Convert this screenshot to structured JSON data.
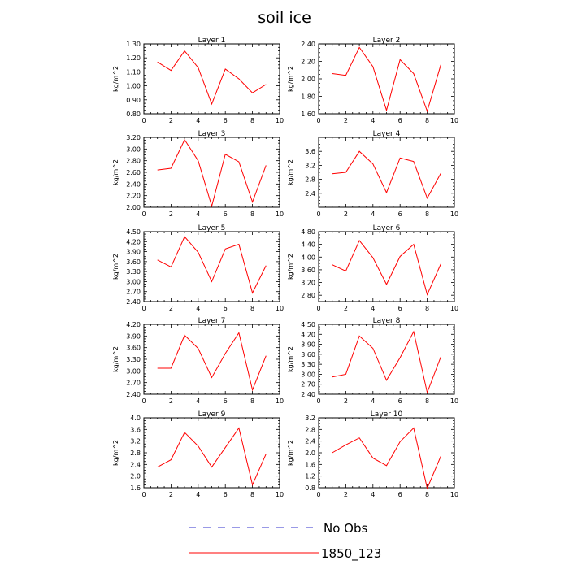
{
  "title": "soil ice",
  "colors": {
    "series": "#ff0000",
    "no_obs": "#3333cc",
    "axis": "#000000"
  },
  "legend": [
    {
      "label": "No Obs",
      "style": "dashed",
      "color": "#3333cc"
    },
    {
      "label": "1850_123",
      "style": "solid",
      "color": "#ff0000"
    }
  ],
  "chart_data": [
    {
      "type": "line",
      "title": "Layer 1",
      "ylabel": "kg/m^2",
      "xlim": [
        0,
        10
      ],
      "xticks": [
        0,
        2,
        4,
        6,
        8,
        10
      ],
      "ylim": [
        0.8,
        1.3
      ],
      "yticks": [
        "0.80",
        "0.90",
        "1.00",
        "1.10",
        "1.20",
        "1.30"
      ],
      "series": [
        {
          "name": "1850_123",
          "x": [
            1,
            2,
            3,
            4,
            5,
            6,
            7,
            8,
            9
          ],
          "y": [
            1.17,
            1.11,
            1.25,
            1.13,
            0.87,
            1.12,
            1.05,
            0.95,
            1.01
          ]
        }
      ]
    },
    {
      "type": "line",
      "title": "Layer 2",
      "ylabel": "kg/m^2",
      "xlim": [
        0,
        10
      ],
      "xticks": [
        0,
        2,
        4,
        6,
        8,
        10
      ],
      "ylim": [
        1.6,
        2.4
      ],
      "yticks": [
        "1.60",
        "1.80",
        "2.00",
        "2.20",
        "2.40"
      ],
      "series": [
        {
          "name": "1850_123",
          "x": [
            1,
            2,
            3,
            4,
            5,
            6,
            7,
            8,
            9
          ],
          "y": [
            2.06,
            2.04,
            2.36,
            2.14,
            1.64,
            2.22,
            2.06,
            1.63,
            2.16
          ]
        }
      ]
    },
    {
      "type": "line",
      "title": "Layer 3",
      "ylabel": "kg/m^2",
      "xlim": [
        0,
        10
      ],
      "xticks": [
        0,
        2,
        4,
        6,
        8,
        10
      ],
      "ylim": [
        2.0,
        3.2
      ],
      "yticks": [
        "2.00",
        "2.20",
        "2.40",
        "2.60",
        "2.80",
        "3.00",
        "3.20"
      ],
      "series": [
        {
          "name": "1850_123",
          "x": [
            1,
            2,
            3,
            4,
            5,
            6,
            7,
            8,
            9
          ],
          "y": [
            2.64,
            2.67,
            3.16,
            2.8,
            2.02,
            2.91,
            2.78,
            2.09,
            2.72
          ]
        }
      ]
    },
    {
      "type": "line",
      "title": "Layer 4",
      "ylabel": "kg/m^2",
      "xlim": [
        0,
        10
      ],
      "xticks": [
        0,
        2,
        4,
        6,
        8,
        10
      ],
      "ylim": [
        2.0,
        4.0
      ],
      "yticks": [
        "2.4",
        "2.8",
        "3.2",
        "3.6"
      ],
      "series": [
        {
          "name": "1850_123",
          "x": [
            1,
            2,
            3,
            4,
            5,
            6,
            7,
            8,
            9
          ],
          "y": [
            2.96,
            3.0,
            3.6,
            3.24,
            2.42,
            3.41,
            3.31,
            2.26,
            2.97
          ]
        }
      ]
    },
    {
      "type": "line",
      "title": "Layer 5",
      "ylabel": "kg/m^2",
      "xlim": [
        0,
        10
      ],
      "xticks": [
        0,
        2,
        4,
        6,
        8,
        10
      ],
      "ylim": [
        2.4,
        4.5
      ],
      "yticks": [
        "2.40",
        "2.70",
        "3.00",
        "3.30",
        "3.60",
        "3.90",
        "4.20",
        "4.50"
      ],
      "series": [
        {
          "name": "1850_123",
          "x": [
            1,
            2,
            3,
            4,
            5,
            6,
            7,
            8,
            9
          ],
          "y": [
            3.65,
            3.44,
            4.35,
            3.88,
            3.0,
            3.98,
            4.12,
            2.66,
            3.48
          ]
        }
      ]
    },
    {
      "type": "line",
      "title": "Layer 6",
      "ylabel": "kg/m^2",
      "xlim": [
        0,
        10
      ],
      "xticks": [
        0,
        2,
        4,
        6,
        8,
        10
      ],
      "ylim": [
        2.6,
        4.8
      ],
      "yticks": [
        "2.80",
        "3.20",
        "3.60",
        "4.00",
        "4.40",
        "4.80"
      ],
      "series": [
        {
          "name": "1850_123",
          "x": [
            1,
            2,
            3,
            4,
            5,
            6,
            7,
            8,
            9
          ],
          "y": [
            3.76,
            3.56,
            4.52,
            3.98,
            3.14,
            4.02,
            4.4,
            2.82,
            3.78
          ]
        }
      ]
    },
    {
      "type": "line",
      "title": "Layer 7",
      "ylabel": "kg/m^2",
      "xlim": [
        0,
        10
      ],
      "xticks": [
        0,
        2,
        4,
        6,
        8,
        10
      ],
      "ylim": [
        2.4,
        4.2
      ],
      "yticks": [
        "2.40",
        "2.70",
        "3.00",
        "3.30",
        "3.60",
        "3.90",
        "4.20"
      ],
      "series": [
        {
          "name": "1850_123",
          "x": [
            1,
            2,
            3,
            4,
            5,
            6,
            7,
            8,
            9
          ],
          "y": [
            3.07,
            3.07,
            3.92,
            3.58,
            2.83,
            3.45,
            3.98,
            2.51,
            3.39
          ]
        }
      ]
    },
    {
      "type": "line",
      "title": "Layer 8",
      "ylabel": "kg/m^2",
      "xlim": [
        0,
        10
      ],
      "xticks": [
        0,
        2,
        4,
        6,
        8,
        10
      ],
      "ylim": [
        2.4,
        4.5
      ],
      "yticks": [
        "2.40",
        "2.70",
        "3.00",
        "3.30",
        "3.60",
        "3.90",
        "4.20",
        "4.50"
      ],
      "series": [
        {
          "name": "1850_123",
          "x": [
            1,
            2,
            3,
            4,
            5,
            6,
            7,
            8,
            9
          ],
          "y": [
            2.92,
            3.0,
            4.15,
            3.78,
            2.82,
            3.5,
            4.28,
            2.45,
            3.52
          ]
        }
      ]
    },
    {
      "type": "line",
      "title": "Layer 9",
      "ylabel": "kg/m^2",
      "xlim": [
        0,
        10
      ],
      "xticks": [
        0,
        2,
        4,
        6,
        8,
        10
      ],
      "ylim": [
        1.6,
        4.0
      ],
      "yticks": [
        "1.6",
        "2.0",
        "2.4",
        "2.8",
        "3.2",
        "3.6",
        "4.0"
      ],
      "series": [
        {
          "name": "1850_123",
          "x": [
            1,
            2,
            3,
            4,
            5,
            6,
            7,
            8,
            9
          ],
          "y": [
            2.31,
            2.56,
            3.5,
            3.03,
            2.31,
            2.98,
            3.65,
            1.7,
            2.76
          ]
        }
      ]
    },
    {
      "type": "line",
      "title": "Layer 10",
      "ylabel": "kg/m^2",
      "xlim": [
        0,
        10
      ],
      "xticks": [
        0,
        2,
        4,
        6,
        8,
        10
      ],
      "ylim": [
        0.8,
        3.2
      ],
      "yticks": [
        "0.8",
        "1.2",
        "1.6",
        "2.0",
        "2.4",
        "2.8",
        "3.2"
      ],
      "series": [
        {
          "name": "1850_123",
          "x": [
            1,
            2,
            3,
            4,
            5,
            6,
            7,
            8,
            9
          ],
          "y": [
            2.0,
            2.27,
            2.51,
            1.82,
            1.56,
            2.38,
            2.85,
            0.78,
            1.88
          ]
        }
      ]
    }
  ]
}
